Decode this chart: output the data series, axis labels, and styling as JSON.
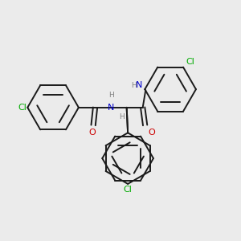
{
  "bg_color": "#ebebeb",
  "bond_color": "#1a1a1a",
  "bond_width": 1.4,
  "dbo": 0.018,
  "atom_colors": {
    "N": "#0000cc",
    "O": "#cc0000",
    "Cl": "#00aa00",
    "H": "#808080",
    "C": "#1a1a1a"
  },
  "font_size": 8.0,
  "font_size_small": 6.5,
  "fig_size": [
    3.0,
    3.0
  ],
  "dpi": 100
}
